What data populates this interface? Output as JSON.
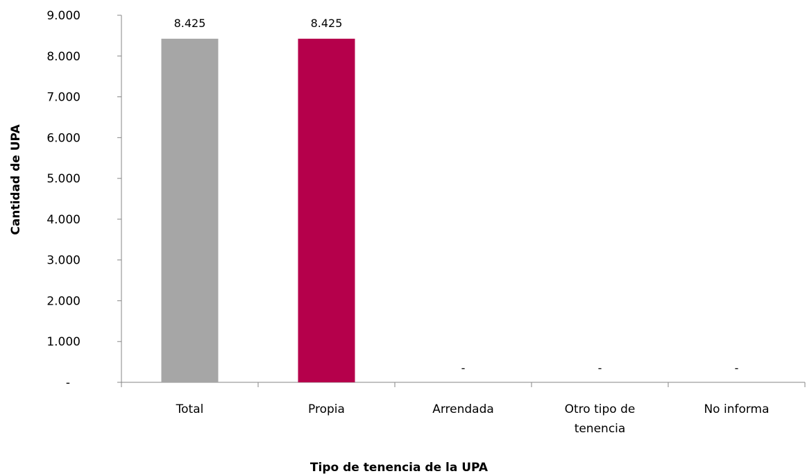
{
  "chart_data": {
    "type": "bar",
    "title": "",
    "xlabel": "Tipo de tenencia de la UPA",
    "ylabel": "Cantidad de UPA",
    "categories": [
      [
        "Total"
      ],
      [
        "Propia"
      ],
      [
        "Arrendada"
      ],
      [
        "Otro tipo de",
        "tenencia"
      ],
      [
        "No informa"
      ]
    ],
    "values": [
      8425,
      8425,
      0,
      0,
      0
    ],
    "value_labels": [
      "8.425",
      "8.425",
      "-",
      "-",
      "-"
    ],
    "bar_colors": [
      "#a6a6a6",
      "#b5004b",
      "#a6a6a6",
      "#a6a6a6",
      "#a6a6a6"
    ],
    "ylim": [
      0,
      9000
    ],
    "yticks": [
      0,
      1000,
      2000,
      3000,
      4000,
      5000,
      6000,
      7000,
      8000,
      9000
    ],
    "ytick_labels": [
      "-",
      "1.000",
      "2.000",
      "3.000",
      "4.000",
      "5.000",
      "6.000",
      "7.000",
      "8.000",
      "9.000"
    ],
    "grid": false,
    "legend": "none"
  }
}
